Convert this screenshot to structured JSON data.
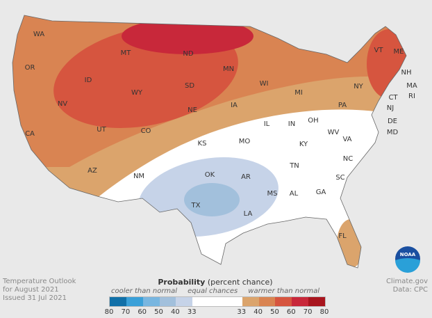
{
  "title": "Temperature Outlook",
  "period": "for August 2021",
  "issued": "Issued 31 Jul 2021",
  "credit": "Climate.gov",
  "data_source": "Data: CPC",
  "legend": {
    "title_bold": "Probability",
    "title_rest": " (percent chance)",
    "cooler": "cooler than normal",
    "equal": "equal chances",
    "warmer": "warmer than normal",
    "cool_colors": [
      "#1170a8",
      "#3aa0d8",
      "#78b6e0",
      "#a2c0dc",
      "#c6d3e8"
    ],
    "equal_color": "#ffffff",
    "warm_colors": [
      "#dba46c",
      "#d98452",
      "#d6553f",
      "#c8283a",
      "#a8151e"
    ],
    "ticks": [
      "80",
      "70",
      "60",
      "50",
      "40",
      "33",
      "33",
      "40",
      "50",
      "60",
      "70",
      "80"
    ]
  },
  "states": {
    "WA": "WA",
    "OR": "OR",
    "CA": "CA",
    "NV": "NV",
    "ID": "ID",
    "MT": "MT",
    "WY": "WY",
    "UT": "UT",
    "AZ": "AZ",
    "CO": "CO",
    "NM": "NM",
    "ND": "ND",
    "SD": "SD",
    "NE": "NE",
    "KS": "KS",
    "OK": "OK",
    "TX": "TX",
    "MN": "MN",
    "IA": "IA",
    "MO": "MO",
    "AR": "AR",
    "LA": "LA",
    "WI": "WI",
    "IL": "IL",
    "MS": "MS",
    "MI": "MI",
    "IN": "IN",
    "KY": "KY",
    "TN": "TN",
    "AL": "AL",
    "OH": "OH",
    "GA": "GA",
    "FL": "FL",
    "SC": "SC",
    "NC": "NC",
    "VA": "VA",
    "WV": "WV",
    "PA": "PA",
    "NY": "NY",
    "VT": "VT",
    "NH": "NH",
    "ME": "ME",
    "MA": "MA",
    "CT": "CT",
    "RI": "RI",
    "NJ": "NJ",
    "DE": "DE",
    "MD": "MD"
  },
  "logo_text": "NOAA"
}
